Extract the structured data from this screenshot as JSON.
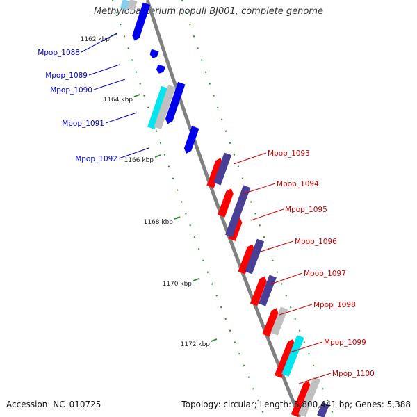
{
  "title": "Methylobacterium populi BJ001, complete genome",
  "accession": "Accession: NC_010725",
  "summary": "Topology: circular; Length: 5,800,441 bp; Genes: 5,388",
  "colors": {
    "backbone": "#808080",
    "tick": "#2e8b2e",
    "reverse_label": "#0000cc",
    "forward_label": "#cc0000",
    "cds_reverse": "#0000ee",
    "cds_forward": "#ff0000",
    "cog_purple": "#4a3f96",
    "cog_cyan": "#00e5ee",
    "cog_light_cyan": "#87ceeb",
    "cog_gray": "#c0c0c0"
  },
  "ruler": [
    "1162 kbp",
    "1164 kbp",
    "1166 kbp",
    "1168 kbp",
    "1170 kbp",
    "1172 kbp"
  ],
  "genes_reverse": [
    "Mpop_1088",
    "Mpop_1089",
    "Mpop_1090",
    "Mpop_1091",
    "Mpop_1092"
  ],
  "genes_forward": [
    "Mpop_1093",
    "Mpop_1094",
    "Mpop_1095",
    "Mpop_1096",
    "Mpop_1097",
    "Mpop_1098",
    "Mpop_1099",
    "Mpop_1100"
  ]
}
